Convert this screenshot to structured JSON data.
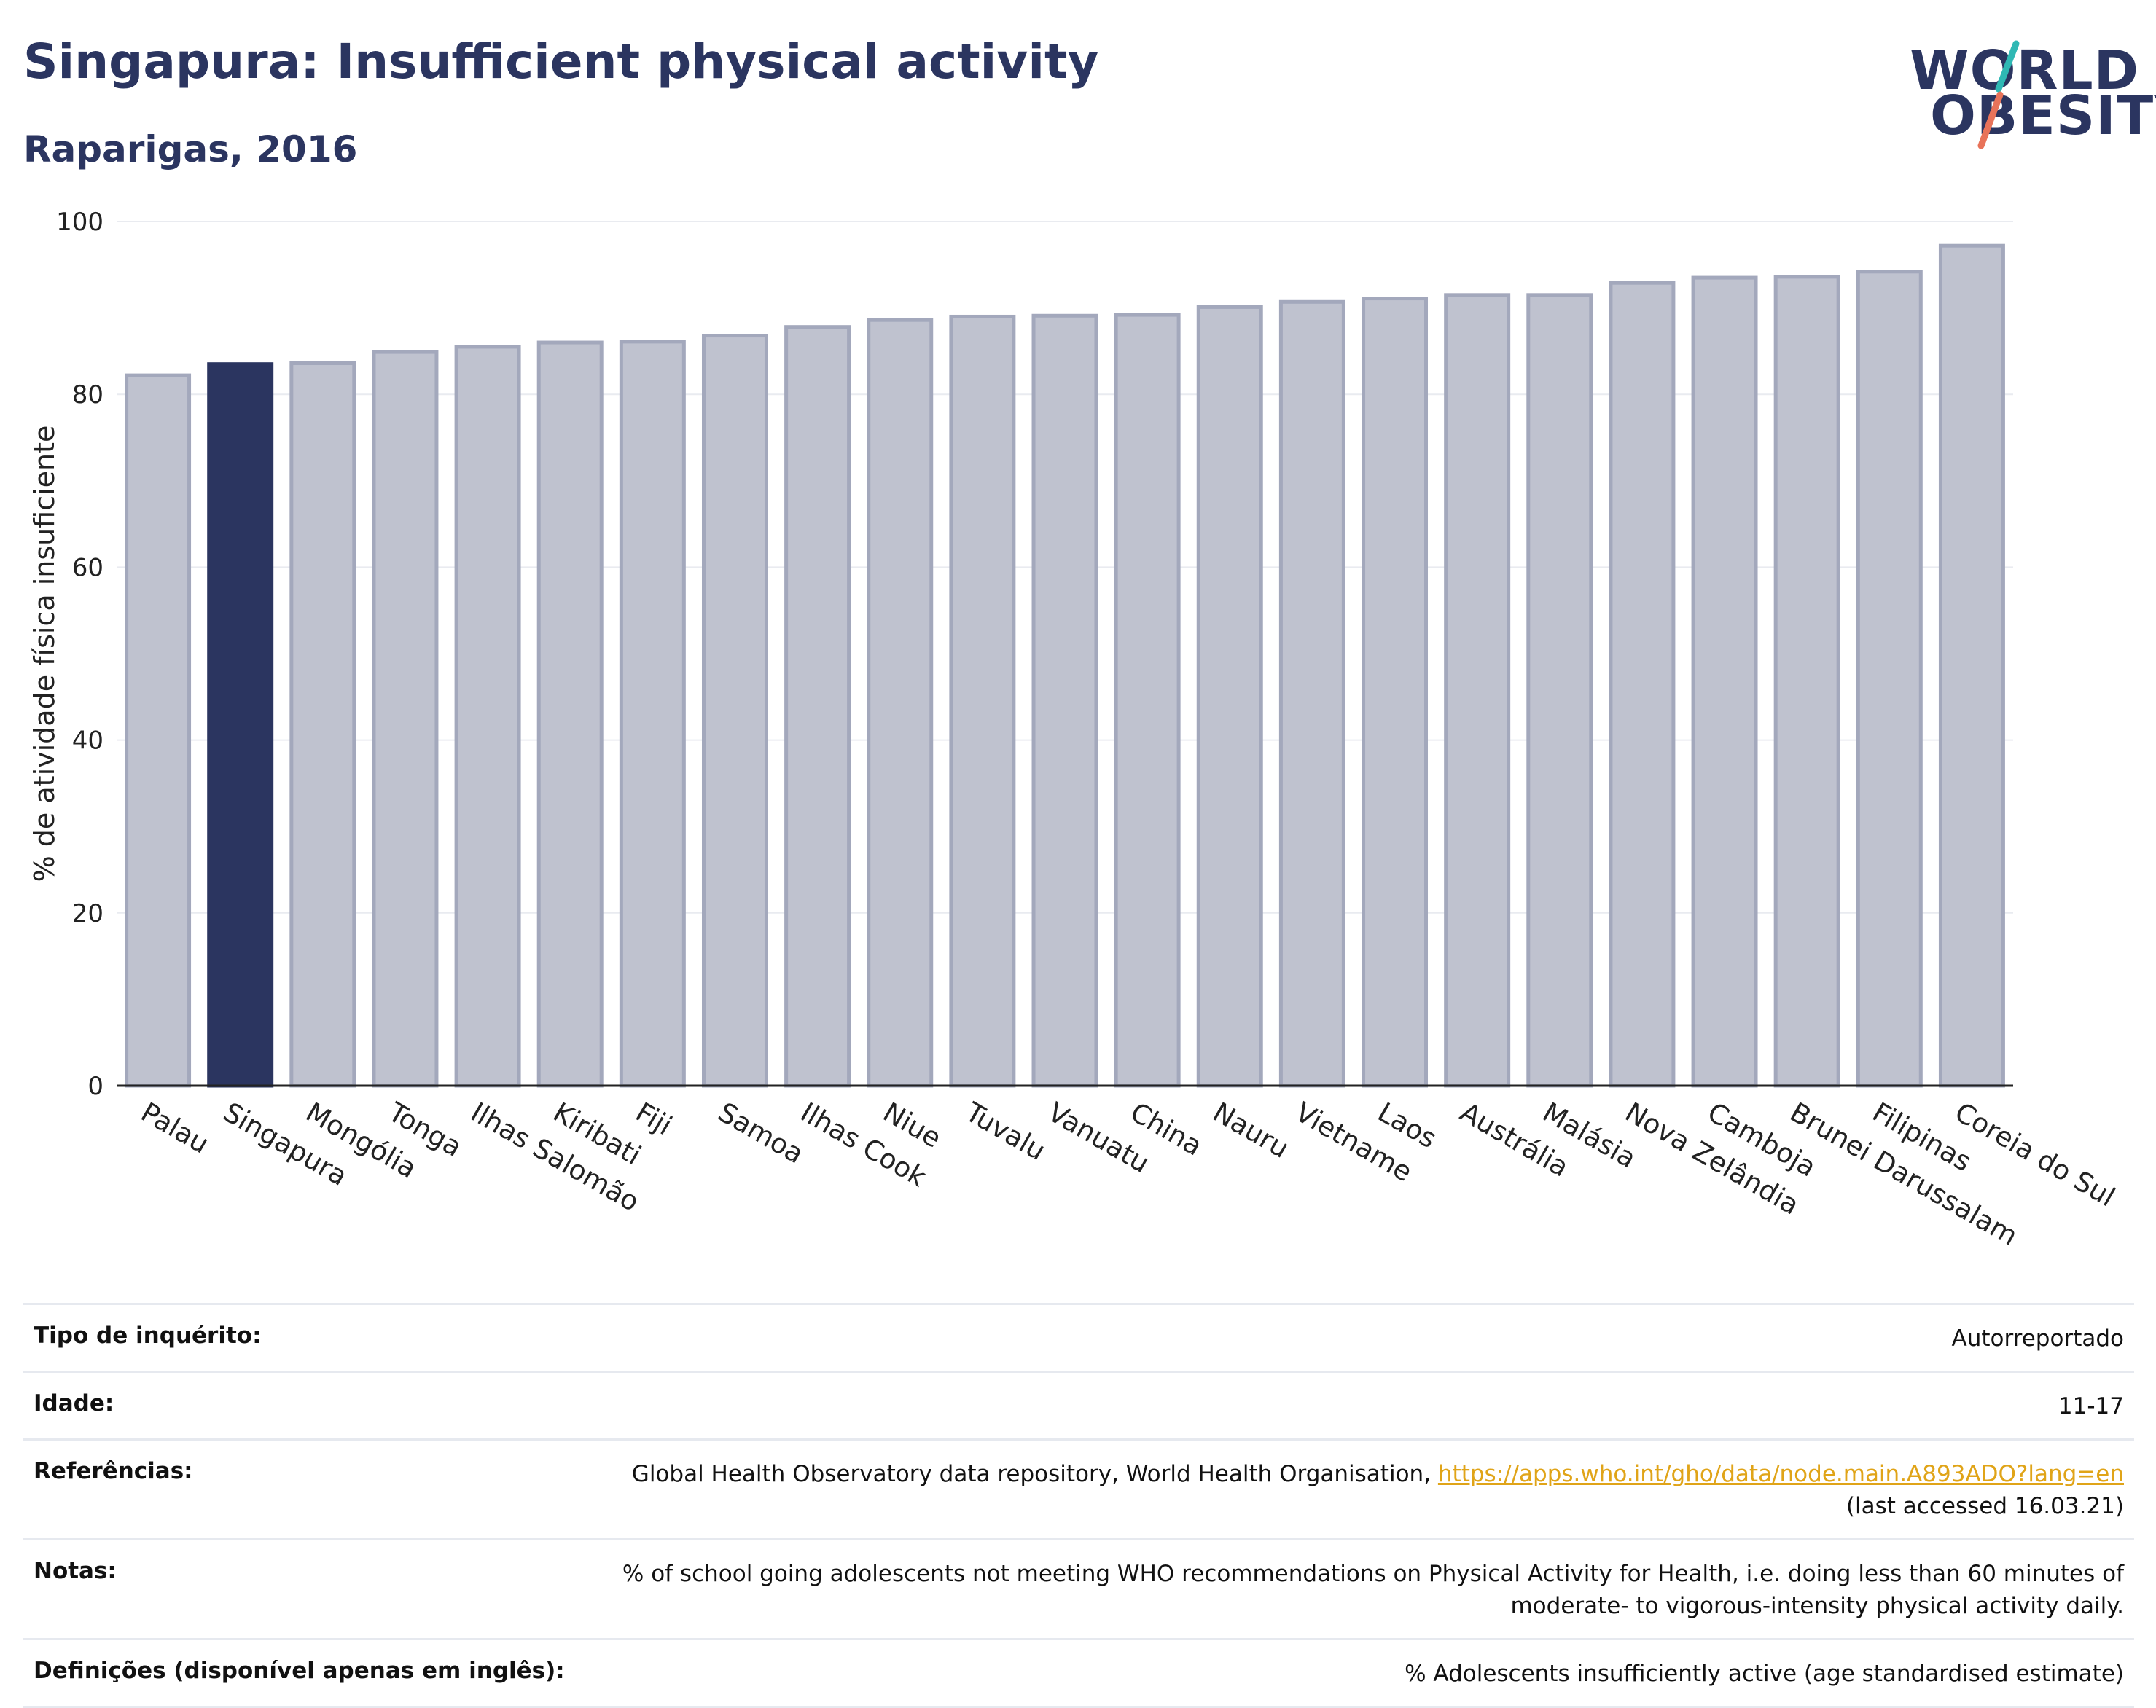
{
  "header": {
    "title": "Singapura: Insufficient physical activity",
    "subtitle": "Raparigas, 2016"
  },
  "logo": {
    "line1": "WORLD",
    "line2": "OBESITY",
    "stroke_colors": [
      "#2fb8b4",
      "#e8735a"
    ]
  },
  "colors": {
    "highlight_bar": "#2b3560",
    "other_bar": "#bfc2cf",
    "other_bar_border": "#a3a8bc",
    "title": "#2b3560",
    "link": "#e0a418"
  },
  "chart_data": {
    "type": "bar",
    "ylabel": "% de atividade física insuficiente",
    "ylim": [
      0,
      100
    ],
    "yticks": [
      0,
      20,
      40,
      60,
      80,
      100
    ],
    "grid": true,
    "highlight": "Singapura",
    "categories": [
      "Palau",
      "Singapura",
      "Mongólia",
      "Tonga",
      "Ilhas Salomão",
      "Kiribati",
      "Fiji",
      "Samoa",
      "Ilhas Cook",
      "Niue",
      "Tuvalu",
      "Vanuatu",
      "China",
      "Nauru",
      "Vietname",
      "Laos",
      "Austrália",
      "Malásia",
      "Nova Zelândia",
      "Camboja",
      "Brunei Darussalam",
      "Filipinas",
      "Coreia do Sul"
    ],
    "values": [
      82.2,
      83.5,
      83.6,
      84.9,
      85.5,
      86.0,
      86.1,
      86.8,
      87.8,
      88.6,
      89.0,
      89.1,
      89.2,
      90.1,
      90.7,
      91.1,
      91.5,
      91.5,
      92.9,
      93.5,
      93.6,
      94.2,
      97.2
    ]
  },
  "info": {
    "survey": {
      "label": "Tipo de inquérito:",
      "value": "Autorreportado"
    },
    "age": {
      "label": "Idade:",
      "value": "11-17"
    },
    "references": {
      "label": "Referências:",
      "text": "Global Health Observatory data repository, World Health Organisation,",
      "link": "https://apps.who.int/gho/data/node.main.A893ADO?lang=en",
      "accessed": "(last accessed 16.03.21)"
    },
    "notes": {
      "label": "Notas:",
      "value": "% of school going adolescents not meeting WHO recommendations on Physical Activity for Health, i.e. doing less than 60 minutes of moderate- to vigorous-intensity physical activity daily."
    },
    "definitions": {
      "label": "Definições (disponível apenas em inglês):",
      "value": "% Adolescents insufficiently active (age standardised estimate)"
    }
  }
}
